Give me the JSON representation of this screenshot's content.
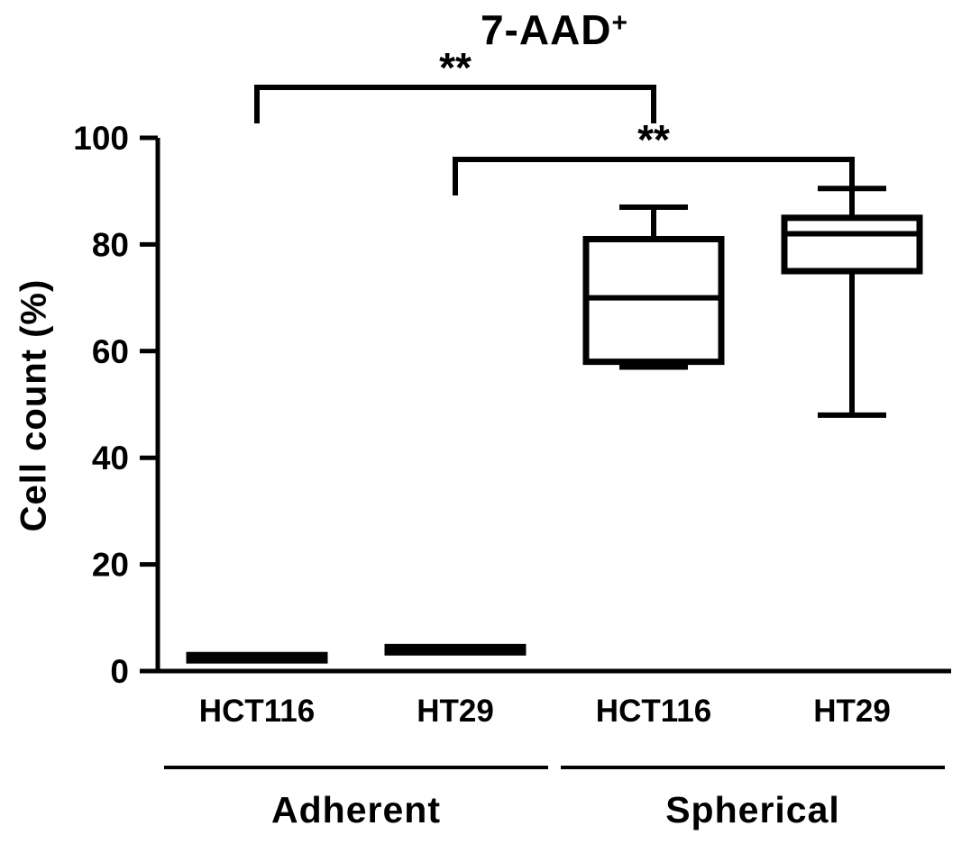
{
  "title": {
    "text": "7-AAD",
    "superscript": "+"
  },
  "chart_data": {
    "type": "box",
    "title": "7-AAD+",
    "xlabel": "",
    "ylabel": "Cell count (%)",
    "ylim": [
      0,
      100
    ],
    "yticks": [
      0,
      20,
      40,
      60,
      80,
      100
    ],
    "grid": false,
    "legend": "none",
    "categories": [
      "HCT116",
      "HT29",
      "HCT116",
      "HT29"
    ],
    "group_labels": [
      {
        "label": "Adherent",
        "from": 0,
        "to": 1
      },
      {
        "label": "Spherical",
        "from": 2,
        "to": 3
      }
    ],
    "boxes": [
      {
        "category": "HCT116",
        "group": "Adherent",
        "min": 2,
        "q1": 2,
        "median": 2.5,
        "q3": 3,
        "max": 3
      },
      {
        "category": "HT29",
        "group": "Adherent",
        "min": 3.5,
        "q1": 3.5,
        "median": 4,
        "q3": 4.5,
        "max": 4.5
      },
      {
        "category": "HCT116",
        "group": "Spherical",
        "min": 57,
        "q1": 58,
        "median": 70,
        "q3": 81,
        "max": 87
      },
      {
        "category": "HT29",
        "group": "Spherical",
        "min": 48,
        "q1": 75,
        "median": 82,
        "q3": 85,
        "max": 90.5
      }
    ],
    "significance_brackets": [
      {
        "from_index": 0,
        "to_index": 2,
        "label": "**"
      },
      {
        "from_index": 1,
        "to_index": 3,
        "label": "**"
      }
    ],
    "colors": {
      "ink": "#000000",
      "box_fill": "#ffffff",
      "background": "#ffffff"
    }
  }
}
